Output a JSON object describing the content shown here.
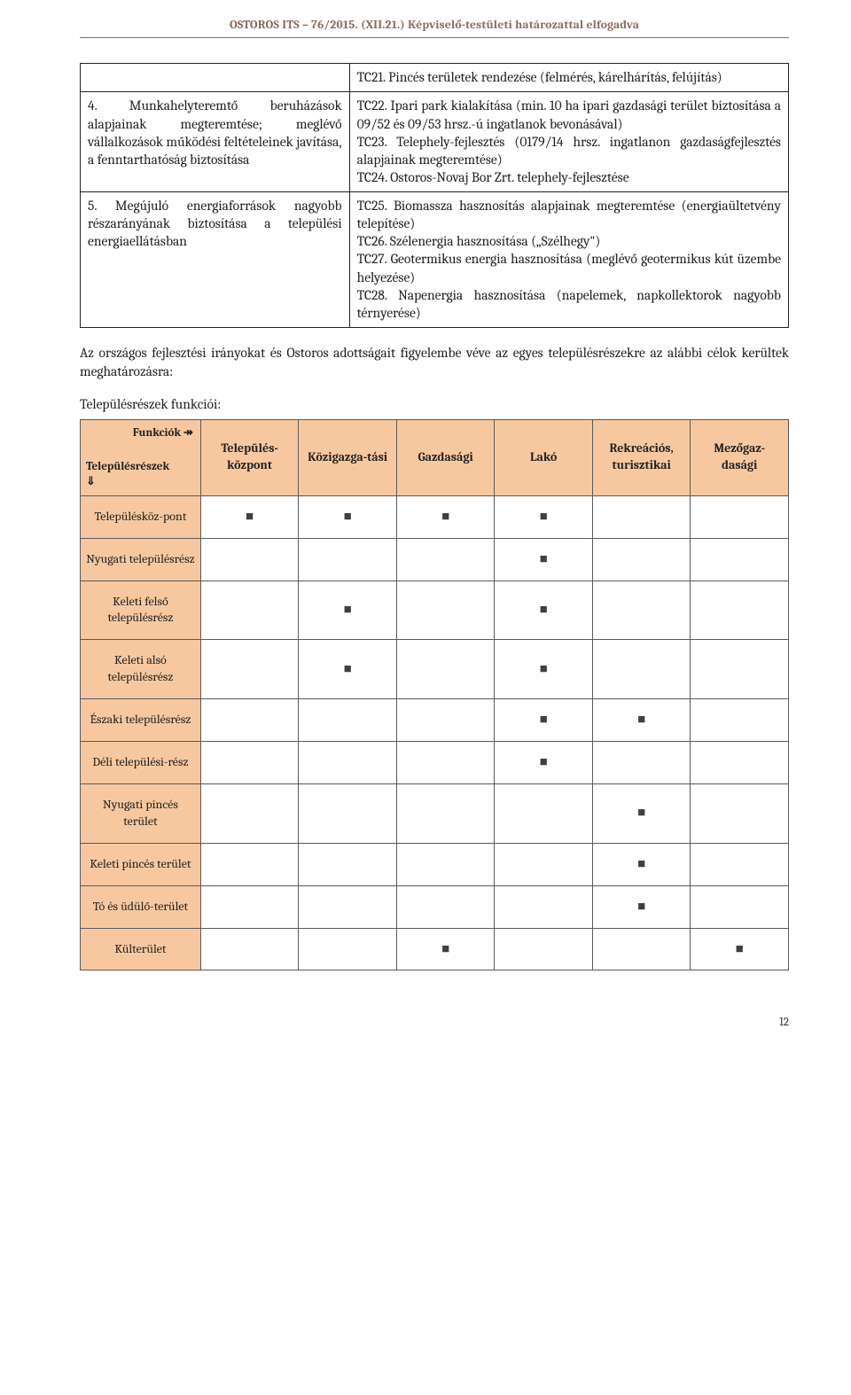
{
  "header": "OSTOROS ITS – 76/2015. (XII.21.) Képviselő-testületi határozattal elfogadva",
  "topTable": {
    "rows": [
      {
        "left": "",
        "right": "TC21. Pincés területek rendezése (felmérés, kárelhárítás, felújítás)"
      },
      {
        "left": "4. Munkahelyteremtő beruházások alapjainak megteremtése; meglévő vállalkozások működési feltételeinek javítása, a fenntarthatóság biztosítása",
        "right": "TC22. Ipari park kialakítása (min. 10 ha ipari gazdasági terület biztosítása a 09/52 és 09/53 hrsz.-ú ingatlanok bevonásával)\nTC23. Telephely-fejlesztés (0179/14 hrsz. ingatlanon gazdaságfejlesztés alapjainak megteremtése)\nTC24. Ostoros-Novaj Bor Zrt. telephely-fejlesztése"
      },
      {
        "left": "5. Megújuló energiaforrások nagyobb részarányának biztosítása a települési energiaellátásban",
        "right": "TC25. Biomassza hasznosítás alapjainak megteremtése (energiaültetvény telepítése)\nTC26. Szélenergia hasznosítása („Szélhegy\")\nTC27. Geotermikus energia hasznosítása (meglévő geotermikus kút üzembe helyezése)\nTC28. Napenergia hasznosítása (napelemek, napkollektorok nagyobb térnyerése)"
      }
    ]
  },
  "paragraph": "Az országos fejlesztési irányokat és Ostoros adottságait figyelembe véve az egyes településrészekre az alábbi célok kerültek meghatározásra:",
  "sectLabel": "Településrészek funkciói:",
  "matrix": {
    "cornerTop": "Funkciók ↠",
    "cornerBottom": "Településrészek\n⇓",
    "cols": [
      "Település-központ",
      "Közigazga-tási",
      "Gazdasági",
      "Lakó",
      "Rekreációs, turisztikai",
      "Mezőgaz-dasági"
    ],
    "rows": [
      {
        "label": "Településköz-pont",
        "marks": [
          true,
          true,
          true,
          true,
          false,
          false
        ]
      },
      {
        "label": "Nyugati településrész",
        "marks": [
          false,
          false,
          false,
          true,
          false,
          false
        ]
      },
      {
        "label": "Keleti felső településrész",
        "marks": [
          false,
          true,
          false,
          true,
          false,
          false
        ]
      },
      {
        "label": "Keleti alsó településrész",
        "marks": [
          false,
          true,
          false,
          true,
          false,
          false
        ]
      },
      {
        "label": "Északi településrész",
        "marks": [
          false,
          false,
          false,
          true,
          true,
          false
        ]
      },
      {
        "label": "Déli települési-rész",
        "marks": [
          false,
          false,
          false,
          true,
          false,
          false
        ]
      },
      {
        "label": "Nyugati pincés terület",
        "marks": [
          false,
          false,
          false,
          false,
          true,
          false
        ]
      },
      {
        "label": "Keleti pincés terület",
        "marks": [
          false,
          false,
          false,
          false,
          true,
          false
        ]
      },
      {
        "label": "Tó és üdülő-terület",
        "marks": [
          false,
          false,
          false,
          false,
          true,
          false
        ]
      },
      {
        "label": "Külterület",
        "marks": [
          false,
          false,
          true,
          false,
          false,
          true
        ]
      }
    ],
    "markGlyph": "■",
    "markColor": "#404040"
  },
  "pageNumber": "12"
}
